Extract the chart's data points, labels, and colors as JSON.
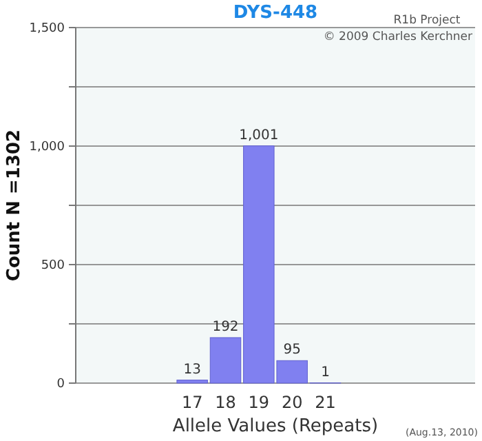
{
  "chart_data": {
    "type": "bar",
    "title": "DYS-448",
    "xlabel": "Allele Values (Repeats)",
    "ylabel": "Count N =1302",
    "categories": [
      null,
      null,
      null,
      "17",
      "18",
      "19",
      "20",
      "21",
      null,
      null,
      null,
      null
    ],
    "values": [
      null,
      null,
      null,
      13,
      192,
      1001,
      95,
      1,
      null,
      null,
      null,
      null
    ],
    "value_labels": [
      null,
      null,
      null,
      "13",
      "192",
      "1,001",
      "95",
      "1",
      null,
      null,
      null,
      null
    ],
    "color": "#8080f0",
    "ylim": [
      0,
      1500
    ],
    "yticks": [
      0,
      {
        "value": 250,
        "label": null
      },
      500,
      {
        "value": 750,
        "label": null
      },
      {
        "value": 1000,
        "label": "1,000"
      },
      {
        "value": 1250,
        "label": null
      },
      {
        "value": 1500,
        "label": "1,500"
      }
    ],
    "grid": "y",
    "annotations": [
      "R1b Project",
      "© 2009 Charles Kerchner",
      "(Aug.13, 2010)"
    ]
  }
}
